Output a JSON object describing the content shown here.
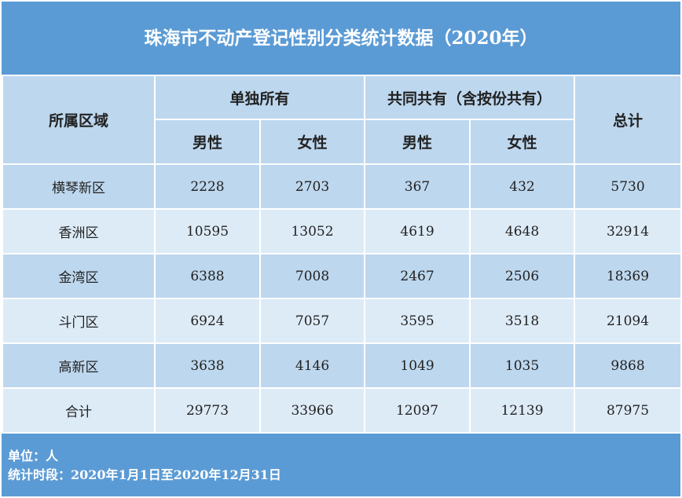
{
  "title": "珠海市不动产登记性别分类统计数据（2020年）",
  "table": {
    "header": {
      "region": "所属区域",
      "groups": [
        "单独所有",
        "共同共有（含按份共有）"
      ],
      "sub": [
        "男性",
        "女性",
        "男性",
        "女性"
      ],
      "total": "总计"
    },
    "rows": [
      [
        "横琴新区",
        2228,
        2703,
        367,
        432,
        5730
      ],
      [
        "香洲区",
        10595,
        13052,
        4619,
        4648,
        32914
      ],
      [
        "金湾区",
        6388,
        7008,
        2467,
        2506,
        18369
      ],
      [
        "斗门区",
        6924,
        7057,
        3595,
        3518,
        21094
      ],
      [
        "高新区",
        3638,
        4146,
        1049,
        1035,
        9868
      ],
      [
        "合计",
        29773,
        33966,
        12097,
        12139,
        87975
      ]
    ]
  },
  "footer": {
    "unit": "单位：人",
    "period": "统计时段：2020年1月1日至2020年12月31日"
  }
}
